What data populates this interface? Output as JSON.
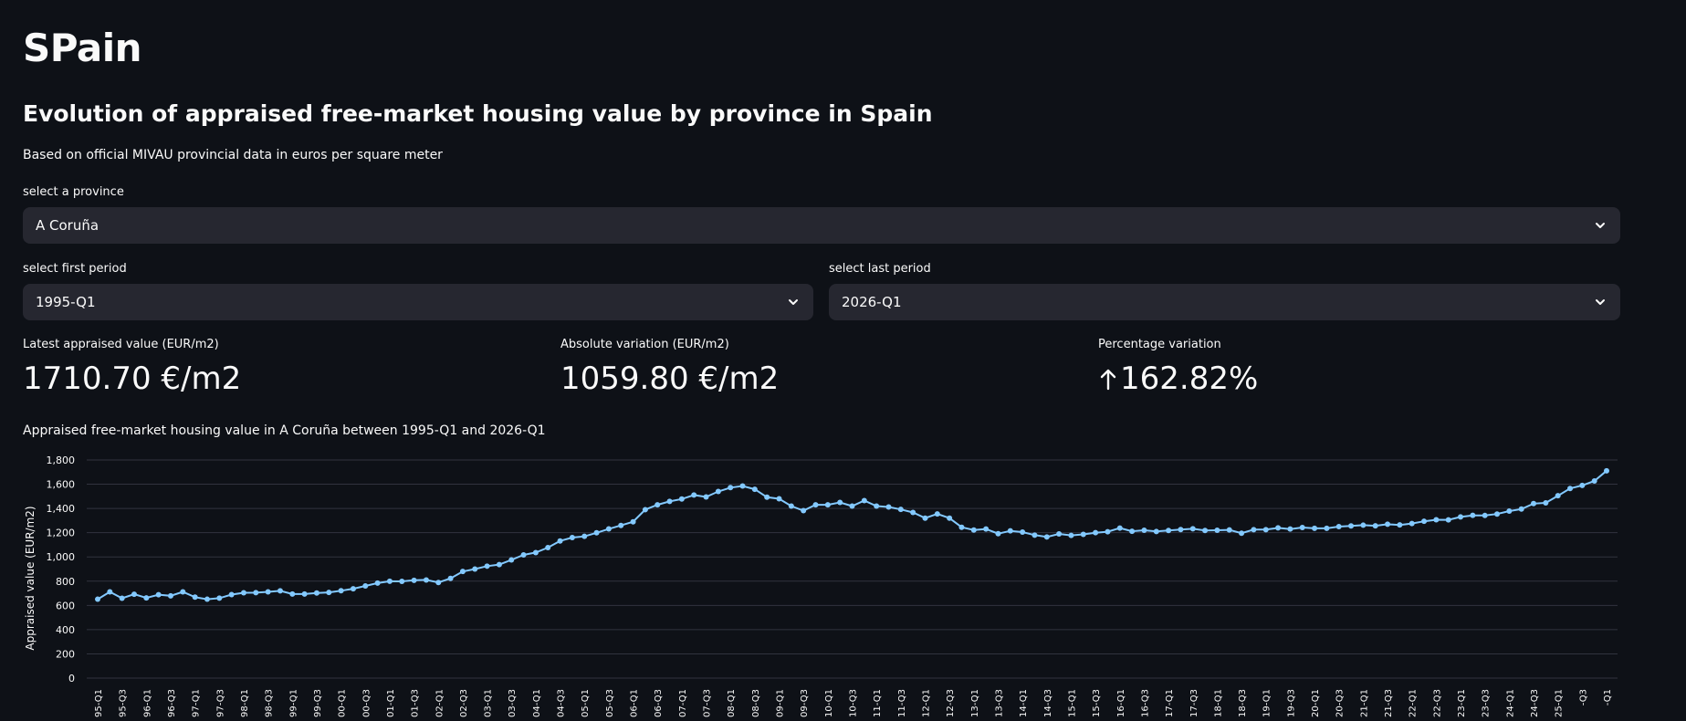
{
  "app": {
    "title": "SPain"
  },
  "section": {
    "title": "Evolution of appraised free-market housing value by province in Spain",
    "subtitle": "Based on official MIVAU provincial data in euros per square meter"
  },
  "province_select": {
    "label": "select a province",
    "value": "A Coruña"
  },
  "first_period_select": {
    "label": "select first period",
    "value": "1995-Q1"
  },
  "last_period_select": {
    "label": "select last period",
    "value": "2026-Q1"
  },
  "metrics": [
    {
      "label": "Latest appraised value (EUR/m2)",
      "value": "1710.70 €/m2"
    },
    {
      "label": "Absolute variation (EUR/m2)",
      "value": "1059.80 €/m2"
    },
    {
      "label": "Percentage variation",
      "value": "162.82%",
      "arrow": "up"
    }
  ],
  "colors": {
    "background": "#0e1117",
    "widget": "#262730",
    "line": "#83c9ff"
  },
  "chart_data": {
    "type": "line",
    "title": "Appraised free-market housing value in A Coruña between 1995-Q1 and 2026-Q1",
    "ylabel": "Appraised value (EUR/m2)",
    "xlabel": "",
    "ylim": [
      0,
      1800
    ],
    "yticks": [
      "0",
      "200",
      "400",
      "600",
      "800",
      "1,000",
      "1,200",
      "1,400",
      "1,600",
      "1,800"
    ],
    "grid": true,
    "x_tick_labels": [
      "95-Q1",
      "95-Q3",
      "96-Q1",
      "96-Q3",
      "97-Q1",
      "97-Q3",
      "98-Q1",
      "98-Q3",
      "99-Q1",
      "99-Q3",
      "00-Q1",
      "00-Q3",
      "01-Q1",
      "01-Q3",
      "02-Q1",
      "02-Q3",
      "03-Q1",
      "03-Q3",
      "04-Q1",
      "04-Q3",
      "05-Q1",
      "05-Q3",
      "06-Q1",
      "06-Q3",
      "07-Q1",
      "07-Q3",
      "08-Q1",
      "08-Q3",
      "09-Q1",
      "09-Q3",
      "10-Q1",
      "10-Q3",
      "11-Q1",
      "11-Q3",
      "12-Q1",
      "12-Q3",
      "13-Q1",
      "13-Q3",
      "14-Q1",
      "14-Q3",
      "15-Q1",
      "15-Q3",
      "16-Q1",
      "16-Q3",
      "17-Q1",
      "17-Q3",
      "18-Q1",
      "18-Q3",
      "19-Q1",
      "19-Q3",
      "20-Q1",
      "20-Q3",
      "21-Q1",
      "21-Q3",
      "22-Q1",
      "22-Q3",
      "23-Q1",
      "23-Q3",
      "24-Q1",
      "24-Q3",
      "25-Q1",
      "-Q3",
      "-Q1"
    ],
    "x": [
      "1995-Q1",
      "1995-Q2",
      "1995-Q3",
      "1995-Q4",
      "1996-Q1",
      "1996-Q2",
      "1996-Q3",
      "1996-Q4",
      "1997-Q1",
      "1997-Q2",
      "1997-Q3",
      "1997-Q4",
      "1998-Q1",
      "1998-Q2",
      "1998-Q3",
      "1998-Q4",
      "1999-Q1",
      "1999-Q2",
      "1999-Q3",
      "1999-Q4",
      "2000-Q1",
      "2000-Q2",
      "2000-Q3",
      "2000-Q4",
      "2001-Q1",
      "2001-Q2",
      "2001-Q3",
      "2001-Q4",
      "2002-Q1",
      "2002-Q2",
      "2002-Q3",
      "2002-Q4",
      "2003-Q1",
      "2003-Q2",
      "2003-Q3",
      "2003-Q4",
      "2004-Q1",
      "2004-Q2",
      "2004-Q3",
      "2004-Q4",
      "2005-Q1",
      "2005-Q2",
      "2005-Q3",
      "2005-Q4",
      "2006-Q1",
      "2006-Q2",
      "2006-Q3",
      "2006-Q4",
      "2007-Q1",
      "2007-Q2",
      "2007-Q3",
      "2007-Q4",
      "2008-Q1",
      "2008-Q2",
      "2008-Q3",
      "2008-Q4",
      "2009-Q1",
      "2009-Q2",
      "2009-Q3",
      "2009-Q4",
      "2010-Q1",
      "2010-Q2",
      "2010-Q3",
      "2010-Q4",
      "2011-Q1",
      "2011-Q2",
      "2011-Q3",
      "2011-Q4",
      "2012-Q1",
      "2012-Q2",
      "2012-Q3",
      "2012-Q4",
      "2013-Q1",
      "2013-Q2",
      "2013-Q3",
      "2013-Q4",
      "2014-Q1",
      "2014-Q2",
      "2014-Q3",
      "2014-Q4",
      "2015-Q1",
      "2015-Q2",
      "2015-Q3",
      "2015-Q4",
      "2016-Q1",
      "2016-Q2",
      "2016-Q3",
      "2016-Q4",
      "2017-Q1",
      "2017-Q2",
      "2017-Q3",
      "2017-Q4",
      "2018-Q1",
      "2018-Q2",
      "2018-Q3",
      "2018-Q4",
      "2019-Q1",
      "2019-Q2",
      "2019-Q3",
      "2019-Q4",
      "2020-Q1",
      "2020-Q2",
      "2020-Q3",
      "2020-Q4",
      "2021-Q1",
      "2021-Q2",
      "2021-Q3",
      "2021-Q4",
      "2022-Q1",
      "2022-Q2",
      "2022-Q3",
      "2022-Q4",
      "2023-Q1",
      "2023-Q2",
      "2023-Q3",
      "2023-Q4",
      "2024-Q1",
      "2024-Q2",
      "2024-Q3",
      "2024-Q4",
      "2025-Q1",
      "2025-Q2",
      "2025-Q3",
      "2025-Q4",
      "2026-Q1"
    ],
    "series": [
      {
        "values": [
          651,
          712,
          659,
          692,
          662,
          688,
          679,
          712,
          668,
          651,
          660,
          689,
          704,
          705,
          712,
          720,
          694,
          694,
          702,
          707,
          721,
          737,
          761,
          784,
          799,
          798,
          807,
          810,
          789,
          823,
          880,
          900,
          924,
          937,
          975,
          1017,
          1036,
          1077,
          1132,
          1160,
          1170,
          1199,
          1231,
          1260,
          1290,
          1390,
          1430,
          1458,
          1478,
          1511,
          1495,
          1540,
          1572,
          1585,
          1558,
          1493,
          1480,
          1420,
          1382,
          1430,
          1430,
          1450,
          1420,
          1465,
          1420,
          1412,
          1392,
          1367,
          1320,
          1355,
          1320,
          1245,
          1222,
          1230,
          1192,
          1215,
          1205,
          1180,
          1165,
          1190,
          1178,
          1186,
          1200,
          1208,
          1238,
          1212,
          1220,
          1210,
          1218,
          1226,
          1232,
          1218,
          1220,
          1223,
          1196,
          1225,
          1225,
          1240,
          1230,
          1243,
          1236,
          1236,
          1250,
          1256,
          1262,
          1257,
          1270,
          1264,
          1276,
          1294,
          1307,
          1306,
          1330,
          1343,
          1342,
          1354,
          1378,
          1395,
          1440,
          1446,
          1505,
          1565,
          1590,
          1627,
          1711
        ]
      }
    ]
  }
}
